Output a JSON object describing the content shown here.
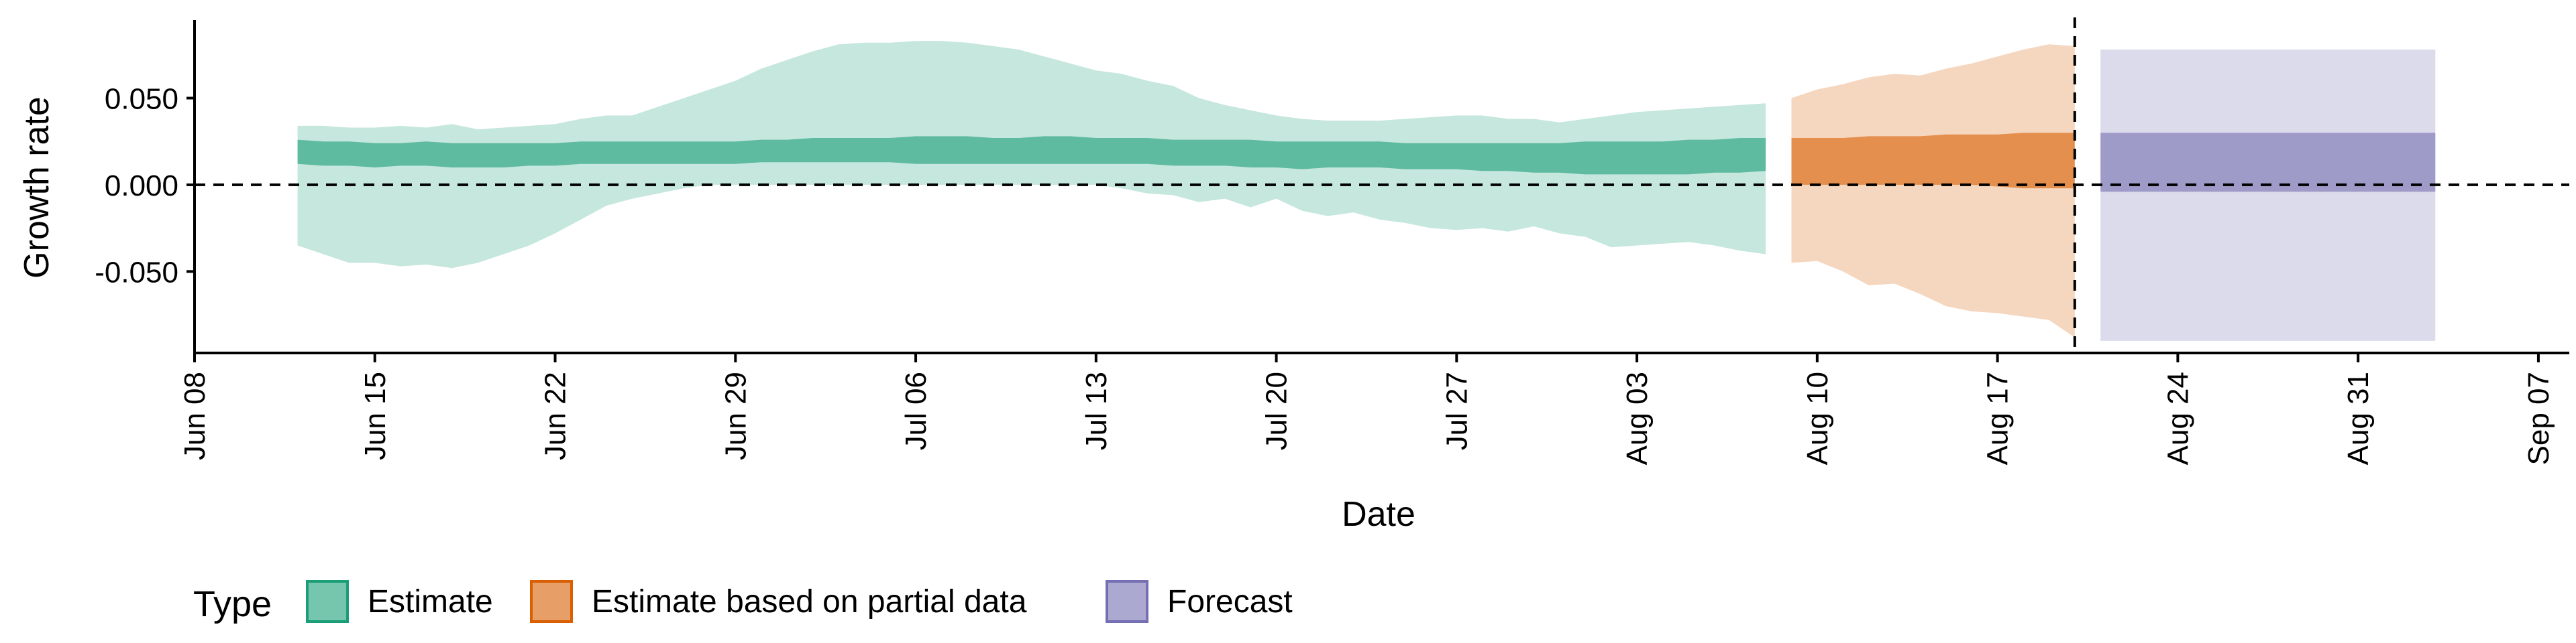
{
  "chart_data": {
    "type": "area",
    "xlabel": "Date",
    "ylabel": "Growth rate",
    "x_axis": {
      "start": "Jun 08",
      "ticks": [
        {
          "day": 0,
          "label": "Jun 08"
        },
        {
          "day": 7,
          "label": "Jun 15"
        },
        {
          "day": 14,
          "label": "Jun 22"
        },
        {
          "day": 21,
          "label": "Jun 29"
        },
        {
          "day": 28,
          "label": "Jul 06"
        },
        {
          "day": 35,
          "label": "Jul 13"
        },
        {
          "day": 42,
          "label": "Jul 20"
        },
        {
          "day": 49,
          "label": "Jul 27"
        },
        {
          "day": 56,
          "label": "Aug 03"
        },
        {
          "day": 63,
          "label": "Aug 10"
        },
        {
          "day": 70,
          "label": "Aug 17"
        },
        {
          "day": 77,
          "label": "Aug 24"
        },
        {
          "day": 84,
          "label": "Aug 31"
        },
        {
          "day": 91,
          "label": "Sep 07"
        }
      ],
      "range": [
        0,
        92.2
      ]
    },
    "y_axis": {
      "ticks": [
        {
          "value": 0.05,
          "label": "0.050"
        },
        {
          "value": 0.0,
          "label": "0.000"
        },
        {
          "value": -0.05,
          "label": "-0.050"
        }
      ],
      "range": [
        -0.097,
        0.095
      ]
    },
    "reference_lines": {
      "horizontal_y": 0.0,
      "vertical_day": 73.0
    },
    "grid": false,
    "legend": {
      "title": "Type",
      "position": "bottom-left",
      "entries": [
        {
          "label": "Estimate",
          "color": "#1b9e77"
        },
        {
          "label": "Estimate based on partial data",
          "color": "#d95f02"
        },
        {
          "label": "Forecast",
          "color": "#7570b3"
        }
      ]
    },
    "series": [
      {
        "name": "Estimate",
        "color": "#1b9e77",
        "x": [
          4,
          5,
          6,
          7,
          8,
          9,
          10,
          11,
          12,
          13,
          14,
          15,
          16,
          17,
          18,
          19,
          20,
          21,
          22,
          23,
          24,
          25,
          26,
          27,
          28,
          29,
          30,
          31,
          32,
          33,
          34,
          35,
          36,
          37,
          38,
          39,
          40,
          41,
          42,
          43,
          44,
          45,
          46,
          47,
          48,
          49,
          50,
          51,
          52,
          53,
          54,
          55,
          56,
          57,
          58,
          59,
          60,
          61
        ],
        "outer_lower": [
          -0.035,
          -0.04,
          -0.045,
          -0.045,
          -0.047,
          -0.046,
          -0.048,
          -0.045,
          -0.04,
          -0.035,
          -0.028,
          -0.02,
          -0.012,
          -0.008,
          -0.005,
          -0.002,
          0.0,
          0.0,
          0.0,
          0.0,
          0.0,
          0.0,
          0.0,
          0.0,
          0.0,
          0.0,
          0.0,
          0.0,
          0.0,
          0.0,
          0.0,
          0.0,
          -0.002,
          -0.005,
          -0.006,
          -0.01,
          -0.008,
          -0.013,
          -0.008,
          -0.015,
          -0.018,
          -0.016,
          -0.02,
          -0.022,
          -0.025,
          -0.026,
          -0.025,
          -0.027,
          -0.024,
          -0.028,
          -0.03,
          -0.036,
          -0.035,
          -0.034,
          -0.033,
          -0.035,
          -0.038,
          -0.04
        ],
        "inner_lower": [
          0.012,
          0.011,
          0.011,
          0.01,
          0.011,
          0.011,
          0.01,
          0.01,
          0.01,
          0.011,
          0.011,
          0.012,
          0.012,
          0.012,
          0.012,
          0.012,
          0.012,
          0.012,
          0.013,
          0.013,
          0.013,
          0.013,
          0.013,
          0.013,
          0.012,
          0.012,
          0.012,
          0.012,
          0.012,
          0.012,
          0.012,
          0.012,
          0.012,
          0.012,
          0.011,
          0.011,
          0.011,
          0.01,
          0.01,
          0.009,
          0.01,
          0.01,
          0.01,
          0.009,
          0.009,
          0.009,
          0.008,
          0.008,
          0.007,
          0.007,
          0.006,
          0.006,
          0.006,
          0.006,
          0.006,
          0.007,
          0.007,
          0.008
        ],
        "inner_upper": [
          0.026,
          0.025,
          0.025,
          0.024,
          0.024,
          0.025,
          0.024,
          0.024,
          0.024,
          0.024,
          0.024,
          0.025,
          0.025,
          0.025,
          0.025,
          0.025,
          0.025,
          0.025,
          0.026,
          0.026,
          0.027,
          0.027,
          0.027,
          0.027,
          0.028,
          0.028,
          0.028,
          0.027,
          0.027,
          0.028,
          0.028,
          0.027,
          0.027,
          0.027,
          0.026,
          0.026,
          0.026,
          0.026,
          0.025,
          0.025,
          0.025,
          0.025,
          0.025,
          0.024,
          0.024,
          0.024,
          0.024,
          0.024,
          0.024,
          0.024,
          0.025,
          0.025,
          0.025,
          0.025,
          0.026,
          0.026,
          0.027,
          0.027
        ],
        "outer_upper": [
          0.034,
          0.034,
          0.033,
          0.033,
          0.034,
          0.033,
          0.035,
          0.032,
          0.033,
          0.034,
          0.035,
          0.038,
          0.04,
          0.04,
          0.045,
          0.05,
          0.055,
          0.06,
          0.067,
          0.072,
          0.077,
          0.081,
          0.082,
          0.082,
          0.083,
          0.083,
          0.082,
          0.08,
          0.078,
          0.074,
          0.07,
          0.066,
          0.064,
          0.06,
          0.057,
          0.05,
          0.046,
          0.043,
          0.04,
          0.038,
          0.037,
          0.037,
          0.037,
          0.038,
          0.039,
          0.04,
          0.04,
          0.038,
          0.038,
          0.036,
          0.038,
          0.04,
          0.042,
          0.043,
          0.044,
          0.045,
          0.046,
          0.047
        ]
      },
      {
        "name": "Estimate based on partial data",
        "color": "#d95f02",
        "x": [
          62,
          63,
          64,
          65,
          66,
          67,
          68,
          69,
          70,
          71,
          72,
          73
        ],
        "outer_lower": [
          -0.045,
          -0.044,
          -0.05,
          -0.058,
          -0.057,
          -0.063,
          -0.07,
          -0.073,
          -0.074,
          -0.076,
          -0.078,
          -0.088
        ],
        "inner_lower": [
          0.0,
          0.0,
          0.0,
          0.0,
          0.0,
          0.0,
          0.0,
          0.0,
          -0.001,
          -0.002,
          -0.002,
          -0.002
        ],
        "inner_upper": [
          0.027,
          0.027,
          0.027,
          0.028,
          0.028,
          0.028,
          0.029,
          0.029,
          0.029,
          0.03,
          0.03,
          0.03
        ],
        "outer_upper": [
          0.05,
          0.055,
          0.058,
          0.062,
          0.064,
          0.063,
          0.067,
          0.07,
          0.074,
          0.078,
          0.081,
          0.08
        ]
      },
      {
        "name": "Forecast",
        "color": "#7570b3",
        "x": [
          74,
          87
        ],
        "outer_lower": [
          -0.09,
          -0.09
        ],
        "inner_lower": [
          -0.004,
          -0.004
        ],
        "inner_upper": [
          0.03,
          0.03
        ],
        "outer_upper": [
          0.078,
          0.078
        ]
      }
    ]
  }
}
